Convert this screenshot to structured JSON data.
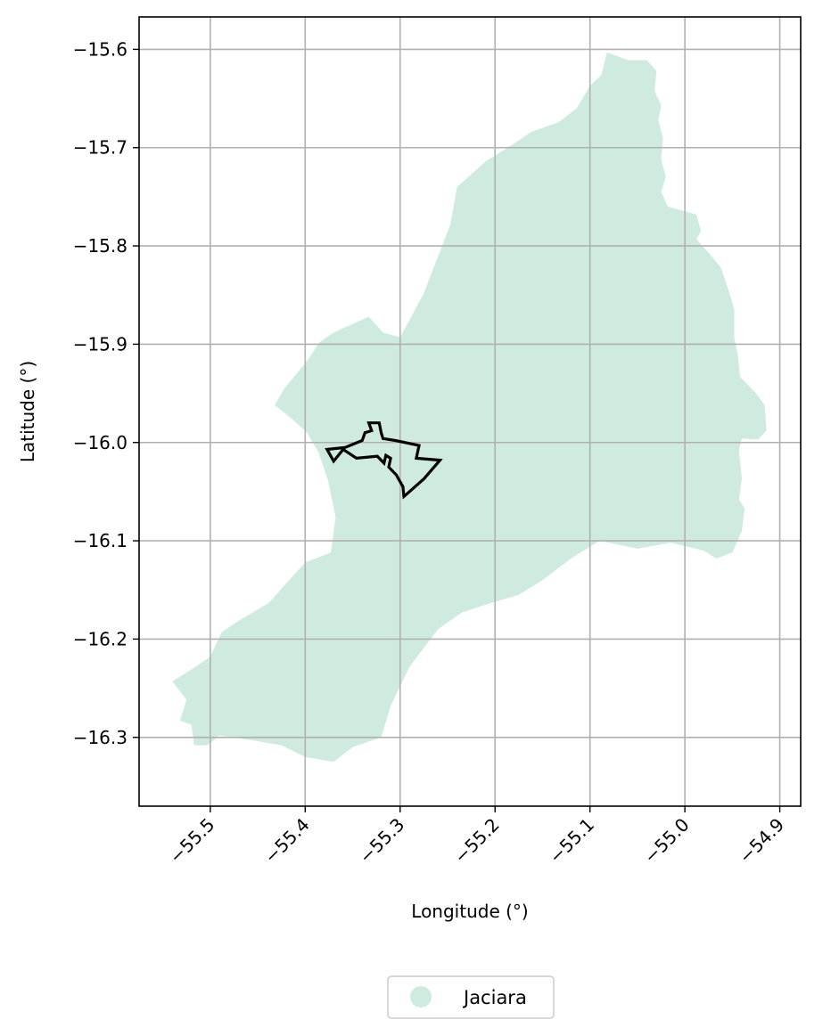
{
  "map": {
    "xlabel": "Longitude (°)",
    "ylabel": "Latitude (°)",
    "xlim": [
      -55.575,
      -54.878
    ],
    "ylim": [
      -16.37,
      -15.567
    ],
    "xticks": [
      -55.5,
      -55.4,
      -55.3,
      -55.2,
      -55.1,
      -55.0,
      -54.9
    ],
    "xtick_labels": [
      "−55.5",
      "−55.4",
      "−55.3",
      "−55.2",
      "−55.1",
      "−55.0",
      "−54.9"
    ],
    "yticks": [
      -15.6,
      -15.7,
      -15.8,
      -15.9,
      -16.0,
      -16.1,
      -16.2,
      -16.3
    ],
    "ytick_labels": [
      "−15.6",
      "−15.7",
      "−15.8",
      "−15.9",
      "−16.0",
      "−16.1",
      "−16.2",
      "−16.3"
    ],
    "grid": true,
    "legend": {
      "position": "bottom-center",
      "label": "Jaciara",
      "color": "#cfebdf"
    },
    "region": {
      "name": "Jaciara",
      "fill": "#cfebdf",
      "outline": [
        [
          -55.082,
          -15.603
        ],
        [
          -55.06,
          -15.611
        ],
        [
          -55.04,
          -15.611
        ],
        [
          -55.03,
          -15.622
        ],
        [
          -55.032,
          -15.642
        ],
        [
          -55.025,
          -15.657
        ],
        [
          -55.028,
          -15.672
        ],
        [
          -55.023,
          -15.69
        ],
        [
          -55.025,
          -15.712
        ],
        [
          -55.02,
          -15.73
        ],
        [
          -55.025,
          -15.745
        ],
        [
          -55.018,
          -15.76
        ],
        [
          -54.988,
          -15.768
        ],
        [
          -54.983,
          -15.785
        ],
        [
          -54.988,
          -15.793
        ],
        [
          -54.975,
          -15.807
        ],
        [
          -54.962,
          -15.822
        ],
        [
          -54.953,
          -15.848
        ],
        [
          -54.948,
          -15.865
        ],
        [
          -54.948,
          -15.893
        ],
        [
          -54.944,
          -15.912
        ],
        [
          -54.942,
          -15.933
        ],
        [
          -54.925,
          -15.95
        ],
        [
          -54.916,
          -15.962
        ],
        [
          -54.914,
          -15.988
        ],
        [
          -54.923,
          -15.997
        ],
        [
          -54.94,
          -15.996
        ],
        [
          -54.943,
          -16.008
        ],
        [
          -54.94,
          -16.037
        ],
        [
          -54.943,
          -16.058
        ],
        [
          -54.937,
          -16.067
        ],
        [
          -54.94,
          -16.09
        ],
        [
          -54.95,
          -16.112
        ],
        [
          -54.967,
          -16.118
        ],
        [
          -54.98,
          -16.11
        ],
        [
          -55.015,
          -16.102
        ],
        [
          -55.05,
          -16.108
        ],
        [
          -55.09,
          -16.1
        ],
        [
          -55.12,
          -16.118
        ],
        [
          -55.15,
          -16.14
        ],
        [
          -55.175,
          -16.155
        ],
        [
          -55.21,
          -16.165
        ],
        [
          -55.235,
          -16.173
        ],
        [
          -55.26,
          -16.19
        ],
        [
          -55.29,
          -16.228
        ],
        [
          -55.31,
          -16.268
        ],
        [
          -55.32,
          -16.3
        ],
        [
          -55.35,
          -16.31
        ],
        [
          -55.37,
          -16.325
        ],
        [
          -55.4,
          -16.32
        ],
        [
          -55.425,
          -16.308
        ],
        [
          -55.455,
          -16.303
        ],
        [
          -55.49,
          -16.298
        ],
        [
          -55.503,
          -16.308
        ],
        [
          -55.517,
          -16.308
        ],
        [
          -55.52,
          -16.287
        ],
        [
          -55.532,
          -16.283
        ],
        [
          -55.525,
          -16.262
        ],
        [
          -55.54,
          -16.243
        ],
        [
          -55.52,
          -16.231
        ],
        [
          -55.5,
          -16.218
        ],
        [
          -55.488,
          -16.193
        ],
        [
          -55.473,
          -16.183
        ],
        [
          -55.438,
          -16.163
        ],
        [
          -55.417,
          -16.14
        ],
        [
          -55.4,
          -16.122
        ],
        [
          -55.373,
          -16.112
        ],
        [
          -55.368,
          -16.076
        ],
        [
          -55.376,
          -16.038
        ],
        [
          -55.386,
          -16.01
        ],
        [
          -55.398,
          -15.99
        ],
        [
          -55.415,
          -15.975
        ],
        [
          -55.432,
          -15.962
        ],
        [
          -55.422,
          -15.945
        ],
        [
          -55.398,
          -15.917
        ],
        [
          -55.385,
          -15.898
        ],
        [
          -55.37,
          -15.888
        ],
        [
          -55.333,
          -15.872
        ],
        [
          -55.318,
          -15.888
        ],
        [
          -55.3,
          -15.893
        ],
        [
          -55.275,
          -15.848
        ],
        [
          -55.247,
          -15.778
        ],
        [
          -55.24,
          -15.74
        ],
        [
          -55.21,
          -15.714
        ],
        [
          -55.18,
          -15.696
        ],
        [
          -55.162,
          -15.684
        ],
        [
          -55.133,
          -15.674
        ],
        [
          -55.114,
          -15.66
        ],
        [
          -55.1,
          -15.637
        ],
        [
          -55.088,
          -15.626
        ]
      ]
    },
    "outline_polygon": {
      "stroke": "#000000",
      "points": [
        [
          -55.333,
          -15.98
        ],
        [
          -55.322,
          -15.98
        ],
        [
          -55.32,
          -15.99
        ],
        [
          -55.318,
          -15.996
        ],
        [
          -55.305,
          -15.998
        ],
        [
          -55.28,
          -16.003
        ],
        [
          -55.283,
          -16.016
        ],
        [
          -55.258,
          -16.018
        ],
        [
          -55.275,
          -16.037
        ],
        [
          -55.296,
          -16.055
        ],
        [
          -55.297,
          -16.045
        ],
        [
          -55.304,
          -16.033
        ],
        [
          -55.312,
          -16.025
        ],
        [
          -55.31,
          -16.016
        ],
        [
          -55.315,
          -16.013
        ],
        [
          -55.317,
          -16.021
        ],
        [
          -55.324,
          -16.014
        ],
        [
          -55.346,
          -16.016
        ],
        [
          -55.36,
          -16.007
        ],
        [
          -55.37,
          -16.019
        ],
        [
          -55.377,
          -16.007
        ],
        [
          -55.358,
          -16.005
        ],
        [
          -55.34,
          -15.998
        ],
        [
          -55.337,
          -15.99
        ],
        [
          -55.33,
          -15.988
        ],
        [
          -55.333,
          -15.98
        ]
      ]
    }
  }
}
